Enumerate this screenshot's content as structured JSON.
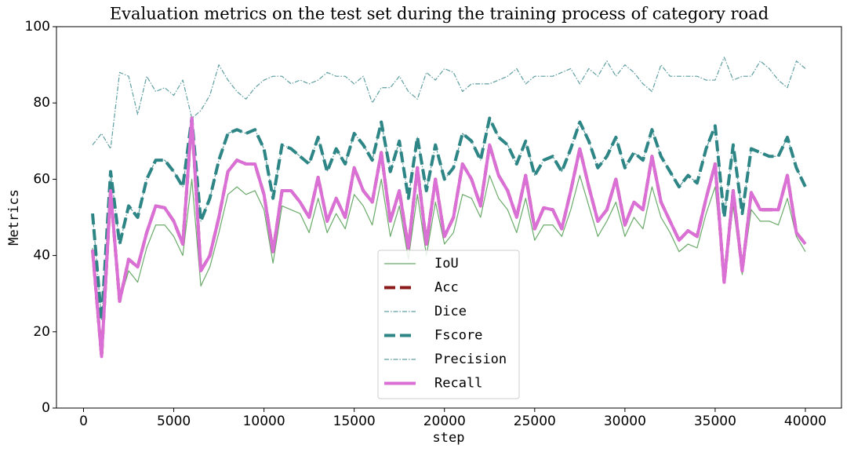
{
  "chart_data": {
    "type": "line",
    "title": "Evaluation metrics on the test set during the training process of category road",
    "xlabel": "step",
    "ylabel": "Metrics",
    "x": [
      500,
      1000,
      1500,
      2000,
      2500,
      3000,
      3500,
      4000,
      4500,
      5000,
      5500,
      6000,
      6500,
      7000,
      7500,
      8000,
      8500,
      9000,
      9500,
      10000,
      10500,
      11000,
      11500,
      12000,
      12500,
      13000,
      13500,
      14000,
      14500,
      15000,
      15500,
      16000,
      16500,
      17000,
      17500,
      18000,
      18500,
      19000,
      19500,
      20000,
      20500,
      21000,
      21500,
      22000,
      22500,
      23000,
      23500,
      24000,
      24500,
      25000,
      25500,
      26000,
      26500,
      27000,
      27500,
      28000,
      28500,
      29000,
      29500,
      30000,
      30500,
      31000,
      31500,
      32000,
      32500,
      33000,
      33500,
      34000,
      34500,
      35000,
      35500,
      36000,
      36500,
      37000,
      37500,
      38000,
      38500,
      39000,
      39500,
      40000
    ],
    "series": [
      {
        "name": "IoU",
        "color": "#6aaa6a",
        "linestyle": "solid",
        "linewidth": 1.2,
        "values": [
          42,
          14,
          55,
          28,
          36,
          33,
          42,
          48,
          48,
          45,
          40,
          60,
          32,
          37,
          46,
          56,
          58,
          56,
          57,
          52,
          38,
          53,
          52,
          51,
          46,
          55,
          46,
          51,
          47,
          56,
          53,
          48,
          60,
          45,
          53,
          39,
          56,
          40,
          54,
          43,
          46,
          56,
          55,
          50,
          61,
          55,
          52,
          46,
          55,
          44,
          48,
          48,
          45,
          52,
          61,
          53,
          45,
          49,
          54,
          45,
          50,
          47,
          58,
          50,
          46,
          41,
          43,
          42,
          51,
          58,
          34,
          53,
          35,
          52,
          49,
          49,
          48,
          55,
          45,
          41
        ]
      },
      {
        "name": "Acc",
        "color": "#8b1a1a",
        "linestyle": "dashed",
        "linewidth": 4,
        "values": [
          41.5,
          13.5,
          57,
          28,
          39,
          37,
          46,
          53,
          52.5,
          49,
          43,
          76,
          36,
          40,
          50,
          62,
          65,
          64,
          64,
          56,
          41,
          57,
          57,
          54,
          50,
          60.5,
          49,
          55,
          50,
          63,
          57,
          54,
          67,
          49,
          57,
          42,
          63,
          43,
          60,
          45,
          50,
          64,
          60,
          53,
          69,
          61,
          57,
          50,
          61,
          47,
          52.5,
          52,
          47,
          57,
          68,
          58,
          49,
          52,
          60,
          48,
          54,
          52,
          66,
          54,
          49,
          44,
          46.5,
          45,
          55,
          64,
          33,
          57,
          36,
          56.5,
          52,
          52,
          52,
          61,
          46,
          43
        ]
      },
      {
        "name": "Dice",
        "color": "#5f9ea0",
        "linestyle": "dashdot",
        "linewidth": 1.2,
        "values": [
          51,
          23,
          62,
          43,
          53,
          50,
          60,
          65,
          65,
          62,
          58,
          76,
          49,
          55,
          65,
          72,
          73,
          72,
          73,
          68,
          55,
          69,
          68,
          66,
          64,
          71,
          62,
          68,
          64,
          72,
          69,
          65,
          75,
          62,
          70,
          55,
          71,
          57,
          69,
          60,
          63,
          72,
          70,
          65,
          76,
          71,
          69,
          64,
          70,
          61,
          65,
          66,
          62,
          68,
          75,
          70,
          63,
          66,
          71,
          63,
          67,
          65,
          73,
          66,
          62,
          58,
          61,
          59,
          68,
          74,
          50,
          69,
          51,
          68,
          67,
          66,
          66,
          71,
          63,
          58
        ]
      },
      {
        "name": "Fscore",
        "color": "#2e8585",
        "linestyle": "dashed",
        "linewidth": 4,
        "values": [
          51,
          23,
          62,
          43,
          53,
          50,
          60,
          65,
          65,
          62,
          58,
          76,
          49,
          55,
          65,
          72,
          73,
          72,
          73,
          68,
          55,
          69,
          68,
          66,
          64,
          71,
          62,
          68,
          64,
          72,
          69,
          65,
          75,
          62,
          70,
          55,
          71,
          57,
          69,
          60,
          63,
          72,
          70,
          65,
          76,
          71,
          69,
          64,
          70,
          61,
          65,
          66,
          62,
          68,
          75,
          70,
          63,
          66,
          71,
          63,
          67,
          65,
          73,
          66,
          62,
          58,
          61,
          59,
          68,
          74,
          50,
          69,
          51,
          68,
          67,
          66,
          66,
          71,
          63,
          58
        ]
      },
      {
        "name": "Precision",
        "color": "#5f9ea0",
        "linestyle": "dashdot",
        "linewidth": 1.2,
        "values": [
          69,
          72,
          68,
          88,
          87,
          77,
          87,
          83,
          84,
          82,
          86,
          76,
          78,
          82,
          90,
          86,
          83,
          81,
          84,
          86,
          87,
          87,
          85,
          86,
          85,
          86,
          88,
          87,
          87,
          85,
          87,
          80,
          84,
          84,
          87,
          83,
          81,
          88,
          86,
          89,
          88,
          83,
          85,
          85,
          85,
          86,
          87,
          89,
          85,
          87,
          87,
          87,
          88,
          89,
          85,
          89,
          87,
          91,
          87,
          90,
          88,
          85,
          83,
          90,
          87,
          87,
          87,
          87,
          86,
          86,
          92,
          86,
          87,
          87,
          91,
          89,
          86,
          84,
          91,
          89
        ]
      },
      {
        "name": "Recall",
        "color": "#da70d6",
        "linestyle": "solid",
        "linewidth": 4,
        "values": [
          41.5,
          13.5,
          57,
          28,
          39,
          37,
          46,
          53,
          52.5,
          49,
          43,
          76,
          36,
          40,
          50,
          62,
          65,
          64,
          64,
          56,
          41,
          57,
          57,
          54,
          50,
          60.5,
          49,
          55,
          50,
          63,
          57,
          54,
          67,
          49,
          57,
          42,
          63,
          43,
          60,
          45,
          50,
          64,
          60,
          53,
          69,
          61,
          57,
          50,
          61,
          47,
          52.5,
          52,
          47,
          57,
          68,
          58,
          49,
          52,
          60,
          48,
          54,
          52,
          66,
          54,
          49,
          44,
          46.5,
          45,
          55,
          64,
          33,
          57,
          36,
          56.5,
          52,
          52,
          52,
          61,
          46,
          43
        ]
      }
    ],
    "xlim": [
      -1500,
      42000
    ],
    "xticks": [
      0,
      5000,
      10000,
      15000,
      20000,
      25000,
      30000,
      35000,
      40000
    ],
    "ylim": [
      0,
      100
    ],
    "yticks": [
      0,
      20,
      40,
      60,
      80,
      100
    ],
    "grid": false,
    "legend": "lower center"
  }
}
